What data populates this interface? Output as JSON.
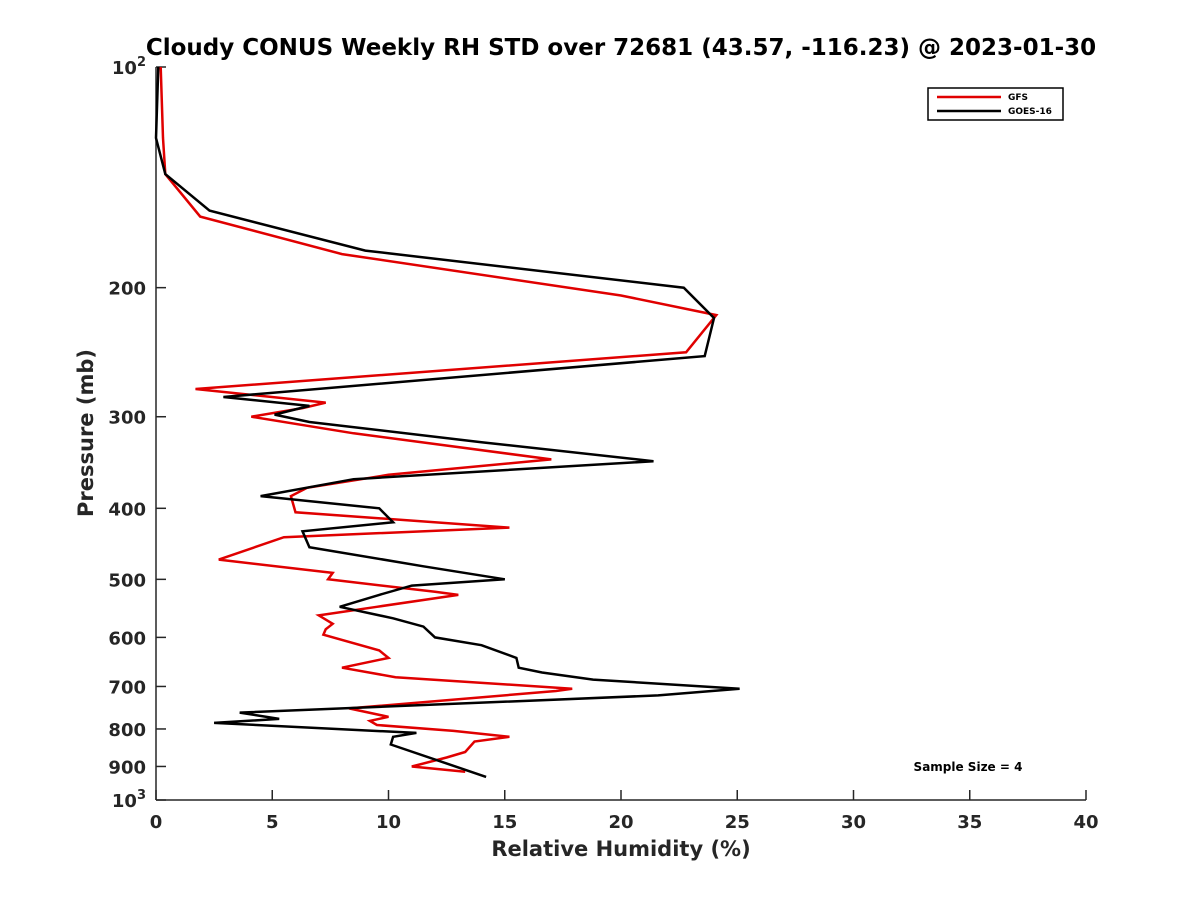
{
  "chart_data": {
    "type": "line",
    "title": "Cloudy CONUS Weekly RH STD over 72681 (43.57, -116.23) @ 2023-01-30",
    "xlabel": "Relative Humidity (%)",
    "ylabel": "Pressure (mb)",
    "xlim": [
      0,
      40
    ],
    "ylim": [
      100,
      1000
    ],
    "y_scale": "log",
    "y_reversed": true,
    "grid": false,
    "legend_position": "top-right",
    "x_ticks": [
      "0",
      "5",
      "10",
      "15",
      "20",
      "25",
      "30",
      "35",
      "40"
    ],
    "y_ticks": [
      {
        "value": 100,
        "label": "10",
        "sup": "2"
      },
      {
        "value": 200,
        "label": "200",
        "sup": ""
      },
      {
        "value": 300,
        "label": "300",
        "sup": ""
      },
      {
        "value": 400,
        "label": "400",
        "sup": ""
      },
      {
        "value": 500,
        "label": "500",
        "sup": ""
      },
      {
        "value": 600,
        "label": "600",
        "sup": ""
      },
      {
        "value": 700,
        "label": "700",
        "sup": ""
      },
      {
        "value": 800,
        "label": "800",
        "sup": ""
      },
      {
        "value": 900,
        "label": "900",
        "sup": ""
      },
      {
        "value": 1000,
        "label": "10",
        "sup": "3"
      }
    ],
    "series": [
      {
        "name": "GFS",
        "color": "#e00000",
        "points": [
          [
            0.2,
            100
          ],
          [
            0.3,
            125
          ],
          [
            0.4,
            140
          ],
          [
            1.9,
            160
          ],
          [
            8.0,
            180
          ],
          [
            20.0,
            205
          ],
          [
            24.1,
            218
          ],
          [
            22.8,
            245
          ],
          [
            1.7,
            275
          ],
          [
            7.3,
            287
          ],
          [
            6.3,
            292
          ],
          [
            4.1,
            300
          ],
          [
            8.5,
            316
          ],
          [
            17.0,
            343
          ],
          [
            10.0,
            360
          ],
          [
            6.5,
            375
          ],
          [
            5.8,
            385
          ],
          [
            6.0,
            405
          ],
          [
            15.2,
            425
          ],
          [
            5.5,
            438
          ],
          [
            2.7,
            470
          ],
          [
            7.6,
            490
          ],
          [
            7.4,
            500
          ],
          [
            12.0,
            520
          ],
          [
            13.0,
            525
          ],
          [
            9.5,
            545
          ],
          [
            7.0,
            560
          ],
          [
            7.6,
            575
          ],
          [
            7.3,
            585
          ],
          [
            7.2,
            595
          ],
          [
            9.6,
            625
          ],
          [
            10.0,
            640
          ],
          [
            8.0,
            660
          ],
          [
            10.3,
            680
          ],
          [
            17.9,
            705
          ],
          [
            17.2,
            710
          ],
          [
            8.3,
            750
          ],
          [
            10.0,
            770
          ],
          [
            9.2,
            780
          ],
          [
            9.5,
            790
          ],
          [
            12.8,
            805
          ],
          [
            15.2,
            820
          ],
          [
            13.7,
            832
          ],
          [
            13.3,
            860
          ],
          [
            12.5,
            875
          ],
          [
            11.0,
            900
          ],
          [
            13.3,
            915
          ]
        ]
      },
      {
        "name": "GOES-16",
        "color": "#000000",
        "points": [
          [
            0.1,
            100
          ],
          [
            0.0,
            125
          ],
          [
            0.4,
            140
          ],
          [
            2.3,
            157
          ],
          [
            9.0,
            178
          ],
          [
            22.7,
            200
          ],
          [
            24.0,
            220
          ],
          [
            23.6,
            248
          ],
          [
            2.9,
            282
          ],
          [
            6.6,
            290
          ],
          [
            5.1,
            298
          ],
          [
            6.6,
            305
          ],
          [
            14.0,
            325
          ],
          [
            21.4,
            345
          ],
          [
            8.5,
            365
          ],
          [
            4.5,
            385
          ],
          [
            9.6,
            400
          ],
          [
            10.2,
            418
          ],
          [
            6.3,
            430
          ],
          [
            6.6,
            452
          ],
          [
            11.5,
            480
          ],
          [
            15.0,
            500
          ],
          [
            11.0,
            510
          ],
          [
            9.6,
            525
          ],
          [
            7.9,
            545
          ],
          [
            10.2,
            565
          ],
          [
            11.5,
            580
          ],
          [
            12.0,
            600
          ],
          [
            14.0,
            615
          ],
          [
            15.5,
            640
          ],
          [
            15.6,
            660
          ],
          [
            16.6,
            670
          ],
          [
            18.8,
            685
          ],
          [
            25.1,
            705
          ],
          [
            21.6,
            720
          ],
          [
            3.6,
            760
          ],
          [
            5.3,
            775
          ],
          [
            2.5,
            785
          ],
          [
            11.2,
            810
          ],
          [
            10.2,
            820
          ],
          [
            10.1,
            840
          ],
          [
            14.2,
            930
          ]
        ]
      }
    ],
    "annotations": [
      "Sample Size = 4"
    ]
  }
}
